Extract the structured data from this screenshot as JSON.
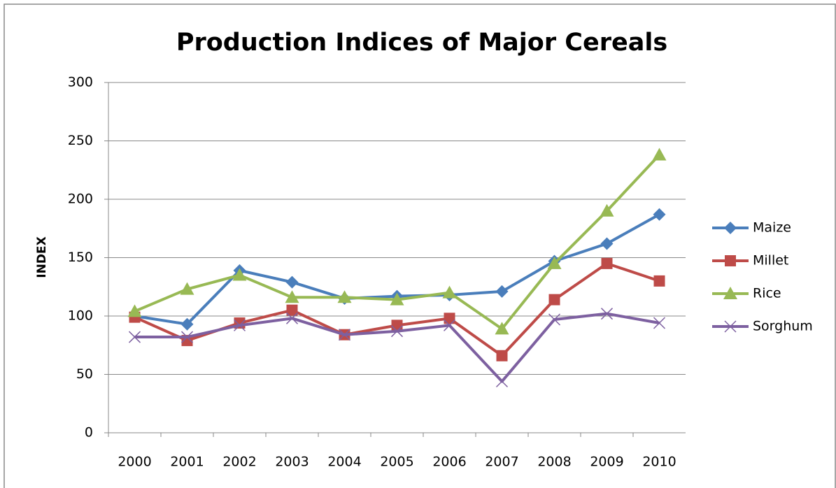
{
  "chart_data": {
    "type": "line",
    "title": "Production Indices of Major Cereals",
    "y_label": "INDEX",
    "categories": [
      "2000",
      "2001",
      "2002",
      "2003",
      "2004",
      "2005",
      "2006",
      "2007",
      "2008",
      "2009",
      "2010"
    ],
    "series": [
      {
        "name": "Maize",
        "color": "#4a7ebb",
        "marker": "diamond",
        "values": [
          100,
          93,
          139,
          129,
          115,
          117,
          118,
          121,
          147,
          162,
          187
        ]
      },
      {
        "name": "Millet",
        "color": "#be4b48",
        "marker": "square",
        "values": [
          99,
          79,
          94,
          105,
          84,
          92,
          98,
          66,
          114,
          145,
          130
        ]
      },
      {
        "name": "Rice",
        "color": "#98b954",
        "marker": "triangle",
        "values": [
          104,
          123,
          135,
          116,
          116,
          114,
          120,
          89,
          145,
          190,
          238
        ]
      },
      {
        "name": "Sorghum",
        "color": "#7d60a0",
        "marker": "x",
        "values": [
          82,
          82,
          92,
          98,
          84,
          87,
          92,
          44,
          97,
          102,
          94
        ]
      }
    ],
    "ylim": [
      0,
      300
    ],
    "yticks": [
      0,
      50,
      100,
      150,
      200,
      250,
      300
    ],
    "grid": true,
    "legend": "right"
  }
}
